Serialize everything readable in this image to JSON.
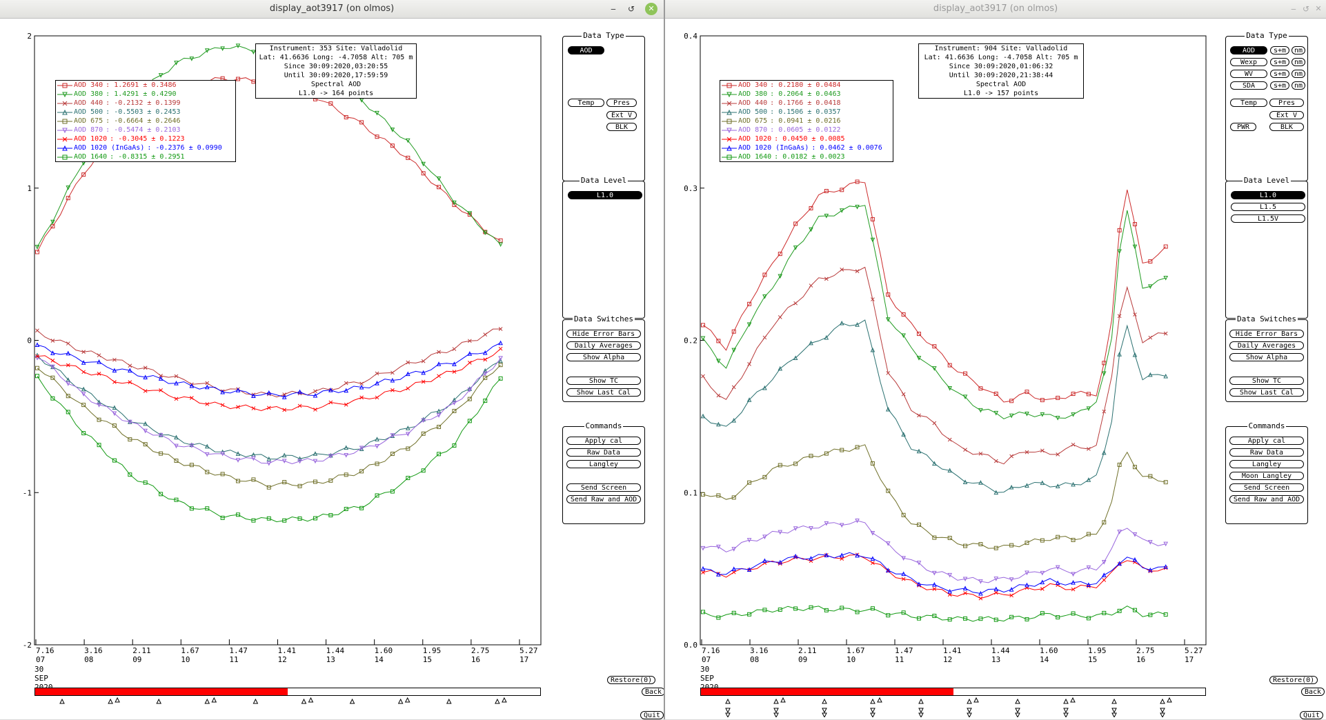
{
  "colors": {
    "c340": "#cc2a2a",
    "c380": "#1f9a1f",
    "c440": "#b83a3a",
    "c500": "#2a7070",
    "c675": "#6f6f28",
    "c870": "#9966dd",
    "c1020": "#ff0000",
    "cInGaAs": "#0000ff",
    "c1640": "#119911"
  },
  "windows": [
    {
      "title": "display_aot3917 (on olmos)",
      "buttons": {
        "minimize": "‒",
        "restore": "↺",
        "close": "✕"
      },
      "info": {
        "line1": "Instrument: 353 Site: Valladolid",
        "line2": "Lat: 41.6636 Long: -4.7058 Alt: 705 m",
        "line3": "Since 30:09:2020,03:20:55",
        "line4": "Until 30:09:2020,17:59:59",
        "line5": "Spectral AOD",
        "line6": "L1.0 -> 164 points"
      },
      "legend": [
        {
          "label": "AOD 340",
          "value": ": 1.2691 ± 0.3486",
          "color": "#cc2a2a",
          "marker": "square"
        },
        {
          "label": "AOD 380",
          "value": ": 1.4291 ± 0.4290",
          "color": "#1f9a1f",
          "marker": "tridown"
        },
        {
          "label": "AOD 440",
          "value": ": -0.2132 ± 0.1399",
          "color": "#b83a3a",
          "marker": "x"
        },
        {
          "label": "AOD 500",
          "value": ": -0.5503 ± 0.2453",
          "color": "#2a7070",
          "marker": "triup"
        },
        {
          "label": "AOD 675",
          "value": ": -0.6664 ± 0.2646",
          "color": "#6f6f28",
          "marker": "square"
        },
        {
          "label": "AOD 870",
          "value": ": -0.5474 ± 0.2103",
          "color": "#9966dd",
          "marker": "tridown"
        },
        {
          "label": "AOD 1020",
          "value": ": -0.3045 ± 0.1223",
          "color": "#ff0000",
          "marker": "x"
        },
        {
          "label": "AOD 1020 (InGaAs)",
          "value": ": -0.2376 ± 0.0990",
          "color": "#0000ff",
          "marker": "triup"
        },
        {
          "label": "AOD 1640",
          "value": ": -0.8315 ± 0.2951",
          "color": "#119911",
          "marker": "square"
        }
      ],
      "chart_data": {
        "type": "line",
        "ylim": [
          -2,
          2
        ],
        "yticks": [
          "2",
          "1",
          "0",
          "-1",
          "-2"
        ],
        "x": [
          0,
          0.1,
          0.2,
          0.3,
          0.4,
          0.5,
          0.6,
          0.7,
          0.8,
          0.9,
          1.0
        ],
        "xtick_top": [
          "7.16",
          "3.16",
          "2.11",
          "1.67",
          "1.47",
          "1.41",
          "1.44",
          "1.60",
          "1.95",
          "2.75",
          "5.27"
        ],
        "xtick_bottom": [
          "07",
          "08",
          "09",
          "10",
          "11",
          "12",
          "13",
          "14",
          "15",
          "16",
          "17"
        ],
        "date": [
          "30",
          "SEP",
          "2020"
        ],
        "series": [
          {
            "name": "AOD 340",
            "values": [
              0.58,
              1.1,
              1.45,
              1.66,
              1.72,
              1.7,
              1.6,
              1.42,
              1.2,
              0.9,
              0.64
            ]
          },
          {
            "name": "AOD 380",
            "values": [
              0.6,
              1.18,
              1.58,
              1.82,
              1.93,
              1.9,
              1.78,
              1.58,
              1.3,
              0.92,
              0.62
            ]
          },
          {
            "name": "AOD 440",
            "values": [
              0.05,
              -0.07,
              -0.16,
              -0.25,
              -0.32,
              -0.36,
              -0.34,
              -0.27,
              -0.16,
              -0.05,
              0.08
            ]
          },
          {
            "name": "AOD 500",
            "values": [
              -0.1,
              -0.33,
              -0.52,
              -0.65,
              -0.73,
              -0.77,
              -0.76,
              -0.7,
              -0.58,
              -0.4,
              -0.12
            ]
          },
          {
            "name": "AOD 675",
            "values": [
              -0.17,
              -0.44,
              -0.64,
              -0.79,
              -0.89,
              -0.95,
              -0.94,
              -0.86,
              -0.7,
              -0.48,
              -0.15
            ]
          },
          {
            "name": "AOD 870",
            "values": [
              -0.1,
              -0.36,
              -0.54,
              -0.68,
              -0.76,
              -0.8,
              -0.79,
              -0.72,
              -0.6,
              -0.42,
              -0.12
            ]
          },
          {
            "name": "AOD 1020",
            "values": [
              -0.1,
              -0.2,
              -0.29,
              -0.37,
              -0.43,
              -0.45,
              -0.44,
              -0.39,
              -0.31,
              -0.2,
              -0.07
            ]
          },
          {
            "name": "AOD 1020 (InGaAs)",
            "values": [
              -0.04,
              -0.13,
              -0.21,
              -0.28,
              -0.33,
              -0.36,
              -0.35,
              -0.31,
              -0.23,
              -0.14,
              -0.03
            ]
          },
          {
            "name": "AOD 1640",
            "values": [
              -0.25,
              -0.6,
              -0.88,
              -1.06,
              -1.15,
              -1.18,
              -1.17,
              -1.09,
              -0.92,
              -0.68,
              -0.25
            ]
          }
        ],
        "progress": 0.5
      },
      "panels": {
        "data_type": {
          "title": "Data Type",
          "buttons": [
            "AOD",
            "Temp",
            "Pres",
            "Ext V",
            "BLK"
          ]
        },
        "data_level": {
          "title": "Data Level",
          "buttons": [
            "L1.0"
          ]
        },
        "data_switches": {
          "title": "Data Switches",
          "buttons": [
            "Hide Error Bars",
            "Daily Averages",
            "Show Alpha",
            "Show TC",
            "Show Last Cal"
          ]
        },
        "commands": {
          "title": "Commands",
          "buttons": [
            "Apply cal",
            "Raw Data",
            "Langley",
            "Send Screen",
            "Send Raw and AOD"
          ]
        }
      },
      "bottom_buttons": {
        "restore": "Restore(0)",
        "back": "Back",
        "quit": "Quit"
      }
    },
    {
      "title": "display_aot3917 (on olmos)",
      "buttons": {
        "minimize": "‒",
        "restore": "↺",
        "close": "✕"
      },
      "info": {
        "line1": "Instrument: 904 Site: Valladolid",
        "line2": "Lat: 41.6636 Long: -4.7058 Alt: 705 m",
        "line3": "Since 30:09:2020,01:06:32",
        "line4": "Until 30:09:2020,21:38:44",
        "line5": "Spectral AOD",
        "line6": "L1.0 -> 157 points"
      },
      "legend": [
        {
          "label": "AOD 340",
          "value": ": 0.2180 ± 0.0484",
          "color": "#cc2a2a",
          "marker": "square"
        },
        {
          "label": "AOD 380",
          "value": ": 0.2064 ± 0.0463",
          "color": "#1f9a1f",
          "marker": "tridown"
        },
        {
          "label": "AOD 440",
          "value": ": 0.1766 ± 0.0418",
          "color": "#b83a3a",
          "marker": "x"
        },
        {
          "label": "AOD 500",
          "value": ": 0.1506 ± 0.0357",
          "color": "#2a7070",
          "marker": "triup"
        },
        {
          "label": "AOD 675",
          "value": ": 0.0941 ± 0.0216",
          "color": "#6f6f28",
          "marker": "square"
        },
        {
          "label": "AOD 870",
          "value": ": 0.0605 ± 0.0122",
          "color": "#9966dd",
          "marker": "tridown"
        },
        {
          "label": "AOD 1020",
          "value": ": 0.0450 ± 0.0085",
          "color": "#ff0000",
          "marker": "x"
        },
        {
          "label": "AOD 1020 (InGaAs)",
          "value": ": 0.0462 ± 0.0076",
          "color": "#0000ff",
          "marker": "triup"
        },
        {
          "label": "AOD 1640",
          "value": ": 0.0182 ± 0.0023",
          "color": "#119911",
          "marker": "square"
        }
      ],
      "chart_data": {
        "type": "line",
        "ylim": [
          0,
          0.4
        ],
        "yticks": [
          "0.4",
          "0.3",
          "0.2",
          "0.1",
          "0.0"
        ],
        "x": [
          0,
          0.05,
          0.1,
          0.15,
          0.2,
          0.25,
          0.3,
          0.35,
          0.4,
          0.45,
          0.5,
          0.55,
          0.6,
          0.65,
          0.7,
          0.75,
          0.8,
          0.85,
          0.88,
          0.91,
          0.95,
          1.0
        ],
        "xtick_top": [
          "7.16",
          "3.16",
          "2.11",
          "1.67",
          "1.47",
          "1.41",
          "1.44",
          "1.60",
          "1.95",
          "2.75",
          "5.27"
        ],
        "xtick_bottom": [
          "07",
          "08",
          "09",
          "10",
          "11",
          "12",
          "13",
          "14",
          "15",
          "16",
          "17"
        ],
        "date": [
          "30",
          "SEP",
          "2020"
        ],
        "series": [
          {
            "name": "AOD 340",
            "values": [
              0.21,
              0.195,
              0.225,
              0.25,
              0.275,
              0.295,
              0.3,
              0.305,
              0.23,
              0.21,
              0.195,
              0.18,
              0.17,
              0.16,
              0.165,
              0.16,
              0.165,
              0.165,
              0.2,
              0.31,
              0.25,
              0.26
            ]
          },
          {
            "name": "AOD 380",
            "values": [
              0.2,
              0.182,
              0.212,
              0.235,
              0.26,
              0.28,
              0.285,
              0.29,
              0.215,
              0.195,
              0.18,
              0.165,
              0.155,
              0.15,
              0.152,
              0.15,
              0.15,
              0.16,
              0.19,
              0.295,
              0.235,
              0.24
            ]
          },
          {
            "name": "AOD 440",
            "values": [
              0.175,
              0.16,
              0.185,
              0.21,
              0.225,
              0.24,
              0.245,
              0.248,
              0.18,
              0.155,
              0.145,
              0.13,
              0.125,
              0.12,
              0.128,
              0.125,
              0.13,
              0.13,
              0.17,
              0.24,
              0.2,
              0.205
            ]
          },
          {
            "name": "AOD 500",
            "values": [
              0.15,
              0.142,
              0.16,
              0.175,
              0.19,
              0.2,
              0.21,
              0.212,
              0.155,
              0.13,
              0.12,
              0.11,
              0.105,
              0.1,
              0.106,
              0.105,
              0.105,
              0.11,
              0.14,
              0.215,
              0.175,
              0.178
            ]
          },
          {
            "name": "AOD 675",
            "values": [
              0.1,
              0.095,
              0.105,
              0.115,
              0.12,
              0.125,
              0.128,
              0.13,
              0.1,
              0.08,
              0.072,
              0.067,
              0.065,
              0.064,
              0.067,
              0.07,
              0.07,
              0.072,
              0.09,
              0.13,
              0.11,
              0.108
            ]
          },
          {
            "name": "AOD 870",
            "values": [
              0.065,
              0.062,
              0.068,
              0.073,
              0.076,
              0.078,
              0.08,
              0.08,
              0.065,
              0.055,
              0.048,
              0.044,
              0.042,
              0.043,
              0.046,
              0.05,
              0.048,
              0.05,
              0.06,
              0.08,
              0.068,
              0.066
            ]
          },
          {
            "name": "AOD 1020",
            "values": [
              0.048,
              0.046,
              0.05,
              0.054,
              0.056,
              0.057,
              0.058,
              0.058,
              0.048,
              0.041,
              0.036,
              0.033,
              0.032,
              0.033,
              0.036,
              0.039,
              0.037,
              0.039,
              0.045,
              0.058,
              0.05,
              0.049
            ]
          },
          {
            "name": "AOD 1020 (InGaAs)",
            "values": [
              0.049,
              0.047,
              0.051,
              0.055,
              0.057,
              0.058,
              0.059,
              0.059,
              0.05,
              0.043,
              0.038,
              0.036,
              0.035,
              0.036,
              0.039,
              0.042,
              0.04,
              0.041,
              0.047,
              0.059,
              0.051,
              0.05
            ]
          },
          {
            "name": "AOD 1640",
            "values": [
              0.02,
              0.019,
              0.021,
              0.023,
              0.024,
              0.024,
              0.023,
              0.023,
              0.021,
              0.019,
              0.018,
              0.017,
              0.017,
              0.017,
              0.018,
              0.02,
              0.019,
              0.019,
              0.02,
              0.025,
              0.02,
              0.02
            ]
          }
        ],
        "progress": 0.5
      },
      "panels": {
        "data_type": {
          "title": "Data Type",
          "buttons": [
            "AOD",
            "s+m",
            "nm",
            "Wexp",
            "s+m",
            "nm",
            "WV",
            "s+m",
            "nm",
            "SDA",
            "s+m",
            "nm",
            "Temp",
            "Pres",
            "Ext V",
            "PWR",
            "BLK"
          ]
        },
        "data_level": {
          "title": "Data Level",
          "buttons": [
            "L1.0",
            "L1.5",
            "L1.5V"
          ]
        },
        "data_switches": {
          "title": "Data Switches",
          "buttons": [
            "Hide Error Bars",
            "Daily Averages",
            "Show Alpha",
            "Show TC",
            "Show Last Cal"
          ]
        },
        "commands": {
          "title": "Commands",
          "buttons": [
            "Apply cal",
            "Raw Data",
            "Langley",
            "Moon Langley",
            "Send Screen",
            "Send Raw and AOD"
          ]
        }
      },
      "bottom_buttons": {
        "restore": "Restore(0)",
        "back": "Back",
        "quit": "Quit"
      }
    }
  ]
}
